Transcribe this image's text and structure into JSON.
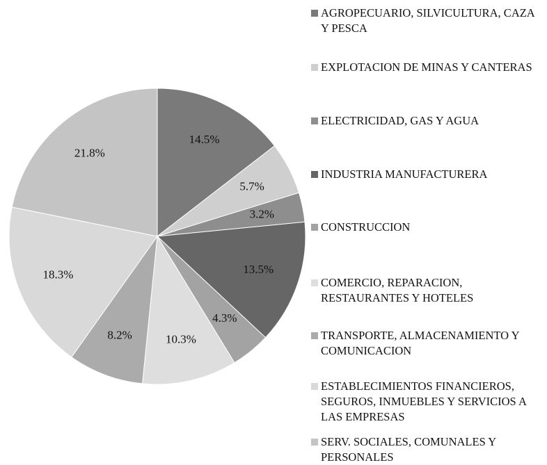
{
  "chart_data": {
    "type": "pie",
    "categories": [
      "AGROPECUARIO, SILVICULTURA, CAZA Y PESCA",
      "EXPLOTACION DE MINAS Y CANTERAS",
      "ELECTRICIDAD, GAS Y AGUA",
      "INDUSTRIA MANUFACTURERA",
      "CONSTRUCCION",
      "COMERCIO, REPARACION, RESTAURANTES Y HOTELES",
      "TRANSPORTE, ALMACENAMIENTO Y COMUNICACION",
      "ESTABLECIMIENTOS FINANCIEROS, SEGUROS, INMUEBLES Y SERVICIOS A LAS EMPRESAS",
      "SERV. SOCIALES, COMUNALES Y PERSONALES"
    ],
    "values": [
      14.5,
      5.7,
      3.2,
      13.5,
      4.3,
      10.3,
      8.2,
      18.3,
      21.8
    ],
    "value_labels": [
      "14.5%",
      "5.7%",
      "3.2%",
      "13.5%",
      "4.3%",
      "10.3%",
      "8.2%",
      "18.3%",
      "21.8%"
    ],
    "colors": [
      "#7a7a7a",
      "#cfcfcf",
      "#8e8e8e",
      "#666666",
      "#a3a3a3",
      "#dedede",
      "#ababab",
      "#d9d9d9",
      "#c4c4c4"
    ],
    "legend": "right"
  }
}
